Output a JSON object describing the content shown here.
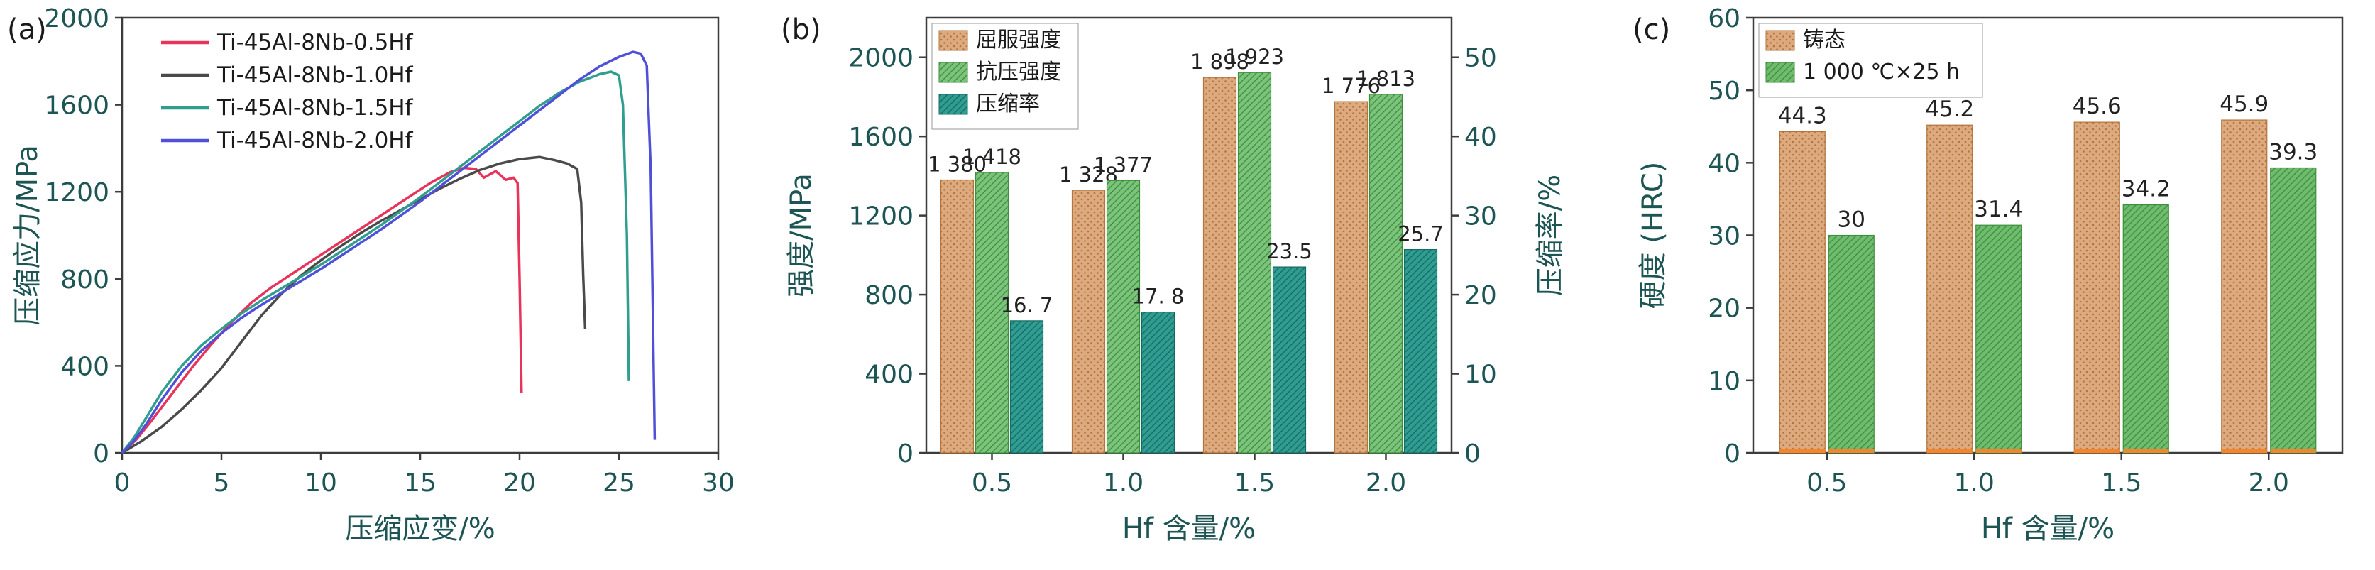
{
  "figure": {
    "background": "#ffffff",
    "text_color": "#1d5555",
    "frame_color": "#3c3c3c",
    "panel_tag_color": "#1a1a1a",
    "value_label_color": "#222222",
    "legend_text_color": "#1a1a1a"
  },
  "chart_data": [
    {
      "id": "a",
      "tag": "(a)",
      "type": "line",
      "xlabel": "压缩应变/%",
      "ylabel": "压缩应力/MPa",
      "xlim": [
        0,
        30
      ],
      "ylim": [
        0,
        2000
      ],
      "xticks": [
        0,
        5,
        10,
        15,
        20,
        25,
        30
      ],
      "yticks": [
        0,
        400,
        800,
        1200,
        1600,
        2000
      ],
      "legend_position": "upper-left",
      "grid": false,
      "series": [
        {
          "name": "Ti-45Al-8Nb-0.5Hf",
          "color": "#e8345a",
          "points": [
            [
              0,
              0
            ],
            [
              0.7,
              60
            ],
            [
              1.5,
              150
            ],
            [
              2.5,
              270
            ],
            [
              3.5,
              390
            ],
            [
              4.5,
              500
            ],
            [
              5.5,
              600
            ],
            [
              6.5,
              690
            ],
            [
              7.5,
              760
            ],
            [
              8.5,
              820
            ],
            [
              9.5,
              880
            ],
            [
              10.5,
              940
            ],
            [
              11.5,
              1000
            ],
            [
              12.5,
              1060
            ],
            [
              13.5,
              1120
            ],
            [
              14.5,
              1180
            ],
            [
              15.5,
              1240
            ],
            [
              16.5,
              1290
            ],
            [
              17.2,
              1310
            ],
            [
              17.8,
              1305
            ],
            [
              18.2,
              1265
            ],
            [
              18.8,
              1295
            ],
            [
              19.3,
              1255
            ],
            [
              19.7,
              1265
            ],
            [
              19.9,
              1240
            ],
            [
              20.0,
              800
            ],
            [
              20.1,
              275
            ]
          ]
        },
        {
          "name": "Ti-45Al-8Nb-1.0Hf",
          "color": "#4a4a4a",
          "points": [
            [
              0,
              0
            ],
            [
              1,
              55
            ],
            [
              2,
              120
            ],
            [
              3,
              200
            ],
            [
              4,
              290
            ],
            [
              5,
              390
            ],
            [
              6,
              510
            ],
            [
              7,
              630
            ],
            [
              8,
              730
            ],
            [
              9,
              815
            ],
            [
              10,
              885
            ],
            [
              11,
              950
            ],
            [
              12,
              1010
            ],
            [
              13,
              1065
            ],
            [
              14,
              1115
            ],
            [
              15,
              1165
            ],
            [
              16,
              1215
            ],
            [
              17,
              1260
            ],
            [
              18,
              1300
            ],
            [
              19,
              1330
            ],
            [
              20,
              1350
            ],
            [
              21,
              1360
            ],
            [
              21.8,
              1345
            ],
            [
              22.4,
              1330
            ],
            [
              22.9,
              1305
            ],
            [
              23.1,
              1150
            ],
            [
              23.2,
              820
            ],
            [
              23.3,
              570
            ]
          ]
        },
        {
          "name": "Ti-45Al-8Nb-1.5Hf",
          "color": "#2f9e8f",
          "points": [
            [
              0,
              0
            ],
            [
              0.6,
              70
            ],
            [
              1.2,
              160
            ],
            [
              2,
              280
            ],
            [
              3,
              400
            ],
            [
              4,
              495
            ],
            [
              5,
              570
            ],
            [
              6,
              640
            ],
            [
              7,
              700
            ],
            [
              8,
              755
            ],
            [
              9,
              810
            ],
            [
              10,
              865
            ],
            [
              11,
              925
            ],
            [
              12,
              985
            ],
            [
              13,
              1045
            ],
            [
              14,
              1110
            ],
            [
              15,
              1175
            ],
            [
              16,
              1245
            ],
            [
              17,
              1315
            ],
            [
              18,
              1385
            ],
            [
              19,
              1455
            ],
            [
              20,
              1525
            ],
            [
              21,
              1595
            ],
            [
              22,
              1655
            ],
            [
              23,
              1705
            ],
            [
              24,
              1740
            ],
            [
              24.6,
              1752
            ],
            [
              25,
              1735
            ],
            [
              25.2,
              1600
            ],
            [
              25.4,
              1000
            ],
            [
              25.5,
              330
            ]
          ]
        },
        {
          "name": "Ti-45Al-8Nb-2.0Hf",
          "color": "#4f4fd8",
          "points": [
            [
              0,
              0
            ],
            [
              0.6,
              55
            ],
            [
              1.2,
              130
            ],
            [
              2,
              245
            ],
            [
              3,
              370
            ],
            [
              4,
              470
            ],
            [
              5,
              550
            ],
            [
              6,
              620
            ],
            [
              7,
              680
            ],
            [
              8,
              735
            ],
            [
              9,
              790
            ],
            [
              10,
              845
            ],
            [
              11,
              905
            ],
            [
              12,
              965
            ],
            [
              13,
              1025
            ],
            [
              14,
              1090
            ],
            [
              15,
              1155
            ],
            [
              16,
              1225
            ],
            [
              17,
              1295
            ],
            [
              18,
              1365
            ],
            [
              19,
              1435
            ],
            [
              20,
              1505
            ],
            [
              21,
              1575
            ],
            [
              22,
              1645
            ],
            [
              23,
              1715
            ],
            [
              24,
              1775
            ],
            [
              25,
              1820
            ],
            [
              25.7,
              1843
            ],
            [
              26.1,
              1835
            ],
            [
              26.4,
              1780
            ],
            [
              26.6,
              1300
            ],
            [
              26.8,
              60
            ]
          ]
        }
      ]
    },
    {
      "id": "b",
      "tag": "(b)",
      "type": "bar",
      "xlabel": "Hf 含量/%",
      "ylabel_left": "强度/MPa",
      "ylabel_right": "压缩率/%",
      "categories": [
        "0.5",
        "1.0",
        "1.5",
        "2.0"
      ],
      "ylim_left": [
        0,
        2200
      ],
      "yticks_left": [
        0,
        400,
        800,
        1200,
        1600,
        2000
      ],
      "ylim_right": [
        0,
        55
      ],
      "yticks_right": [
        0,
        10,
        20,
        30,
        40,
        50
      ],
      "legend_position": "upper-left",
      "grid": false,
      "series": [
        {
          "name": "屈服强度",
          "axis": "left",
          "color": "#dcaa7e",
          "hatch": "dots",
          "hatch_color": "#b4743c",
          "values": [
            1380,
            1328,
            1898,
            1776
          ],
          "value_labels": [
            "1 380",
            "1 328",
            "1 898",
            "1 776"
          ]
        },
        {
          "name": "抗压强度",
          "axis": "left",
          "color": "#7cc47c",
          "hatch": "diag",
          "hatch_color": "#3f8f3f",
          "values": [
            1418,
            1377,
            1923,
            1813
          ],
          "value_labels": [
            "1 418",
            "1 377",
            "1 923",
            "1 813"
          ]
        },
        {
          "name": "压缩率",
          "axis": "right",
          "color": "#2f9d92",
          "hatch": "diag",
          "hatch_color": "#176b62",
          "values": [
            16.7,
            17.8,
            23.5,
            25.7
          ],
          "value_labels": [
            "16. 7",
            "17. 8",
            "23.5",
            "25.7"
          ]
        }
      ]
    },
    {
      "id": "c",
      "tag": "(c)",
      "type": "bar",
      "xlabel": "Hf 含量/%",
      "ylabel_left": "硬度 (HRC)",
      "categories": [
        "0.5",
        "1.0",
        "1.5",
        "2.0"
      ],
      "ylim_left": [
        0,
        60
      ],
      "yticks_left": [
        0,
        10,
        20,
        30,
        40,
        50,
        60
      ],
      "legend_position": "upper-left",
      "grid": false,
      "base_strip_color": "#f0872e",
      "series": [
        {
          "name": "铸态",
          "axis": "left",
          "color": "#dcaa7e",
          "hatch": "dots",
          "hatch_color": "#b4743c",
          "values": [
            44.3,
            45.2,
            45.6,
            45.9
          ],
          "value_labels": [
            "44.3",
            "45.2",
            "45.6",
            "45.9"
          ]
        },
        {
          "name": "1 000 ℃×25 h",
          "axis": "left",
          "color": "#6fbc6f",
          "hatch": "diag",
          "hatch_color": "#3f8f3f",
          "values": [
            30,
            31.4,
            34.2,
            39.3
          ],
          "value_labels": [
            "30",
            "31.4",
            "34.2",
            "39.3"
          ]
        }
      ]
    }
  ]
}
